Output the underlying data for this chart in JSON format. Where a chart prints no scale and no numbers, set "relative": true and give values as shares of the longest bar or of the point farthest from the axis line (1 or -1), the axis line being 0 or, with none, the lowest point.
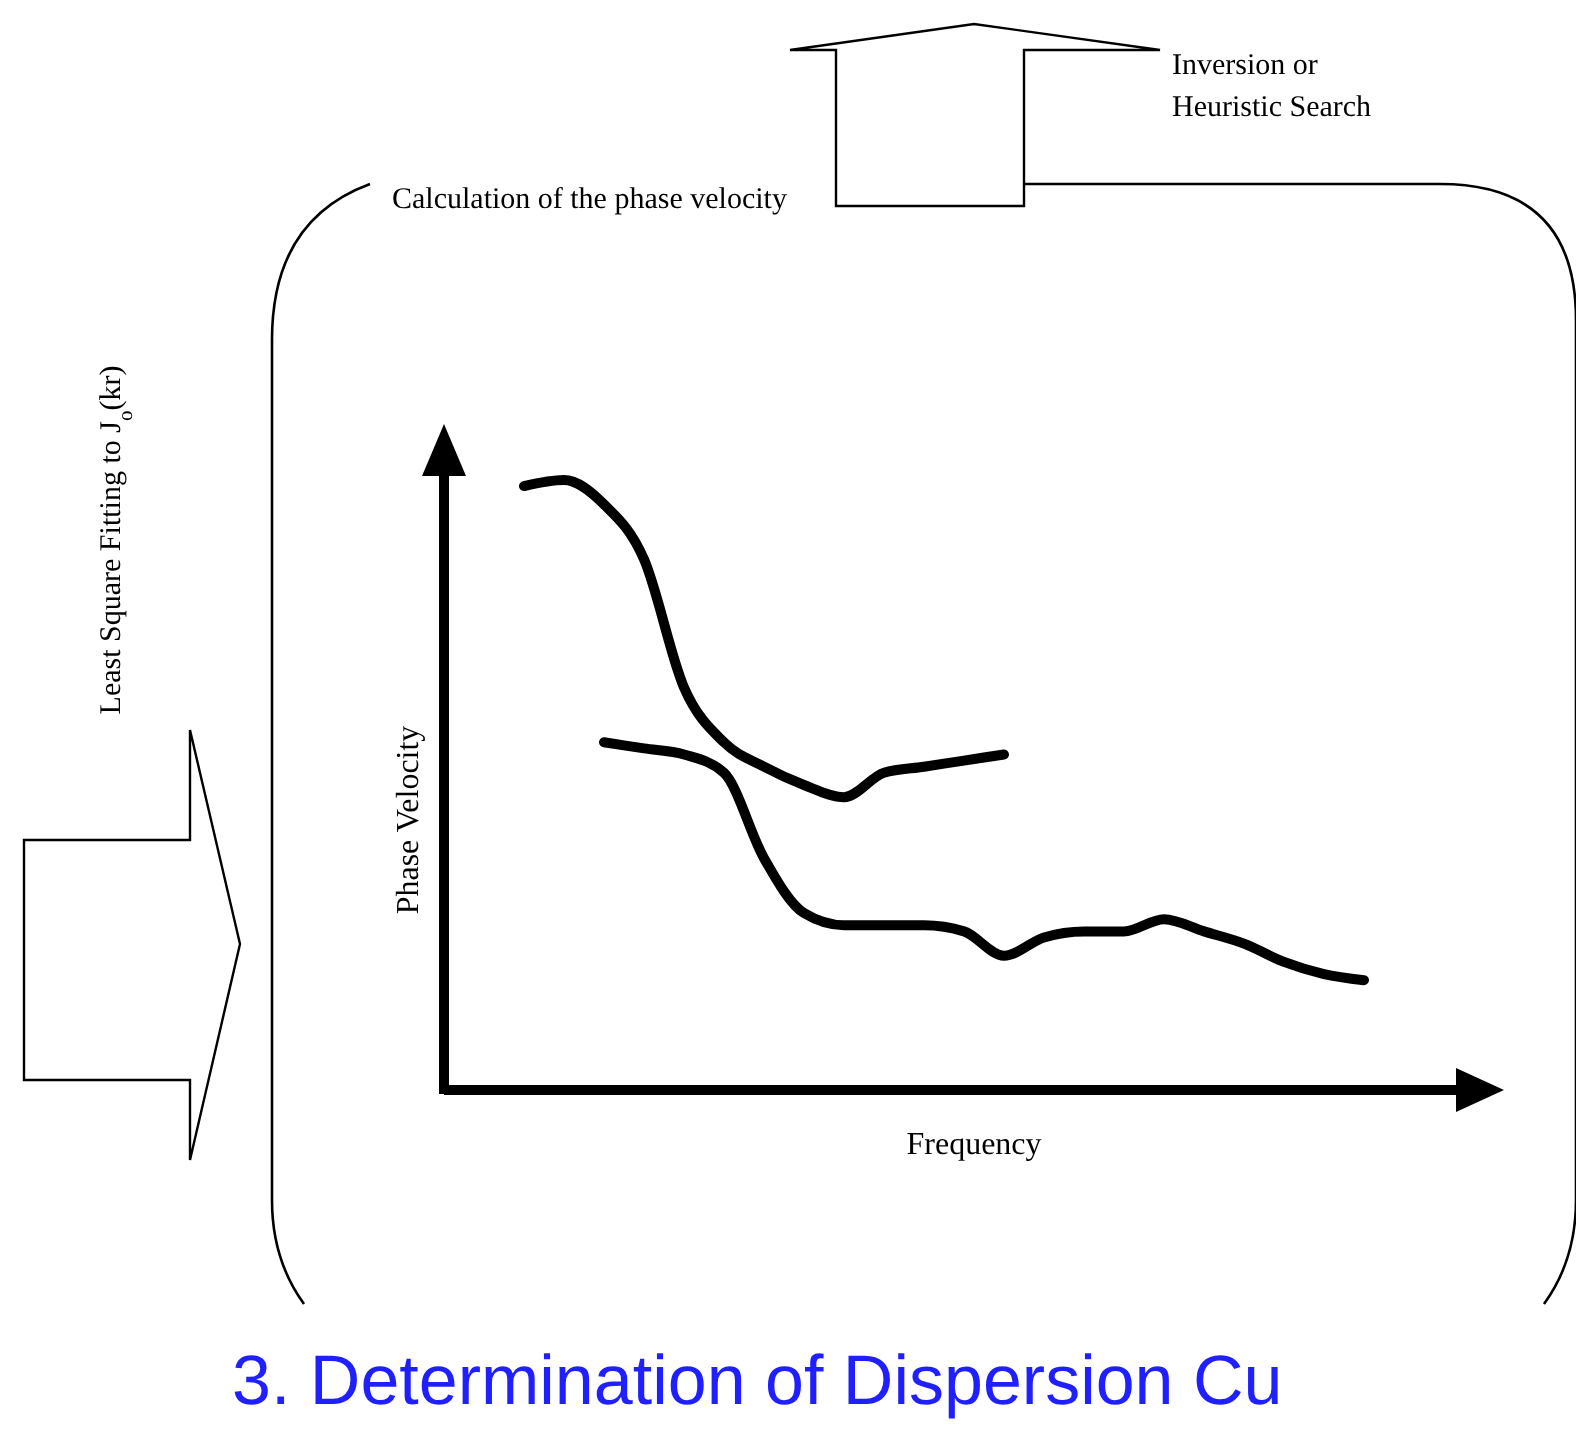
{
  "chart_data": {
    "type": "line",
    "relative": true,
    "title": "3. Determination of Dispersion Cu",
    "xlabel": "Frequency",
    "ylabel": "Phase Velocity",
    "annotations": [
      "Calculation of the phase velocity",
      "Inversion or Heuristic Search",
      "Least Square Fitting to J$_{o}$(kr)"
    ],
    "categories": [
      null,
      null,
      null,
      null,
      null,
      null,
      null,
      null,
      null,
      null,
      null,
      null,
      null,
      null,
      null,
      null,
      null,
      null,
      null,
      null,
      null,
      null,
      null,
      null,
      null,
      null
    ],
    "line_style": "solid",
    "series": [
      {
        "color": "#000000",
        "values": [
          null,
          0.99,
          1,
          0.96,
          0.87,
          0.66,
          0.57,
          0.53,
          0.5,
          0.48,
          0.52,
          0.53,
          0.54,
          0.55,
          null,
          null,
          null,
          null,
          null,
          null,
          null,
          null,
          null,
          null,
          null,
          null
        ]
      },
      {
        "color": "#000000",
        "values": [
          null,
          null,
          null,
          0.57,
          0.56,
          0.55,
          0.52,
          0.38,
          0.29,
          0.27,
          0.27,
          0.27,
          0.26,
          0.22,
          0.25,
          0.26,
          0.26,
          0.28,
          0.26,
          0.24,
          0.21,
          0.19,
          0.18,
          null,
          null,
          null
        ]
      }
    ]
  }
}
